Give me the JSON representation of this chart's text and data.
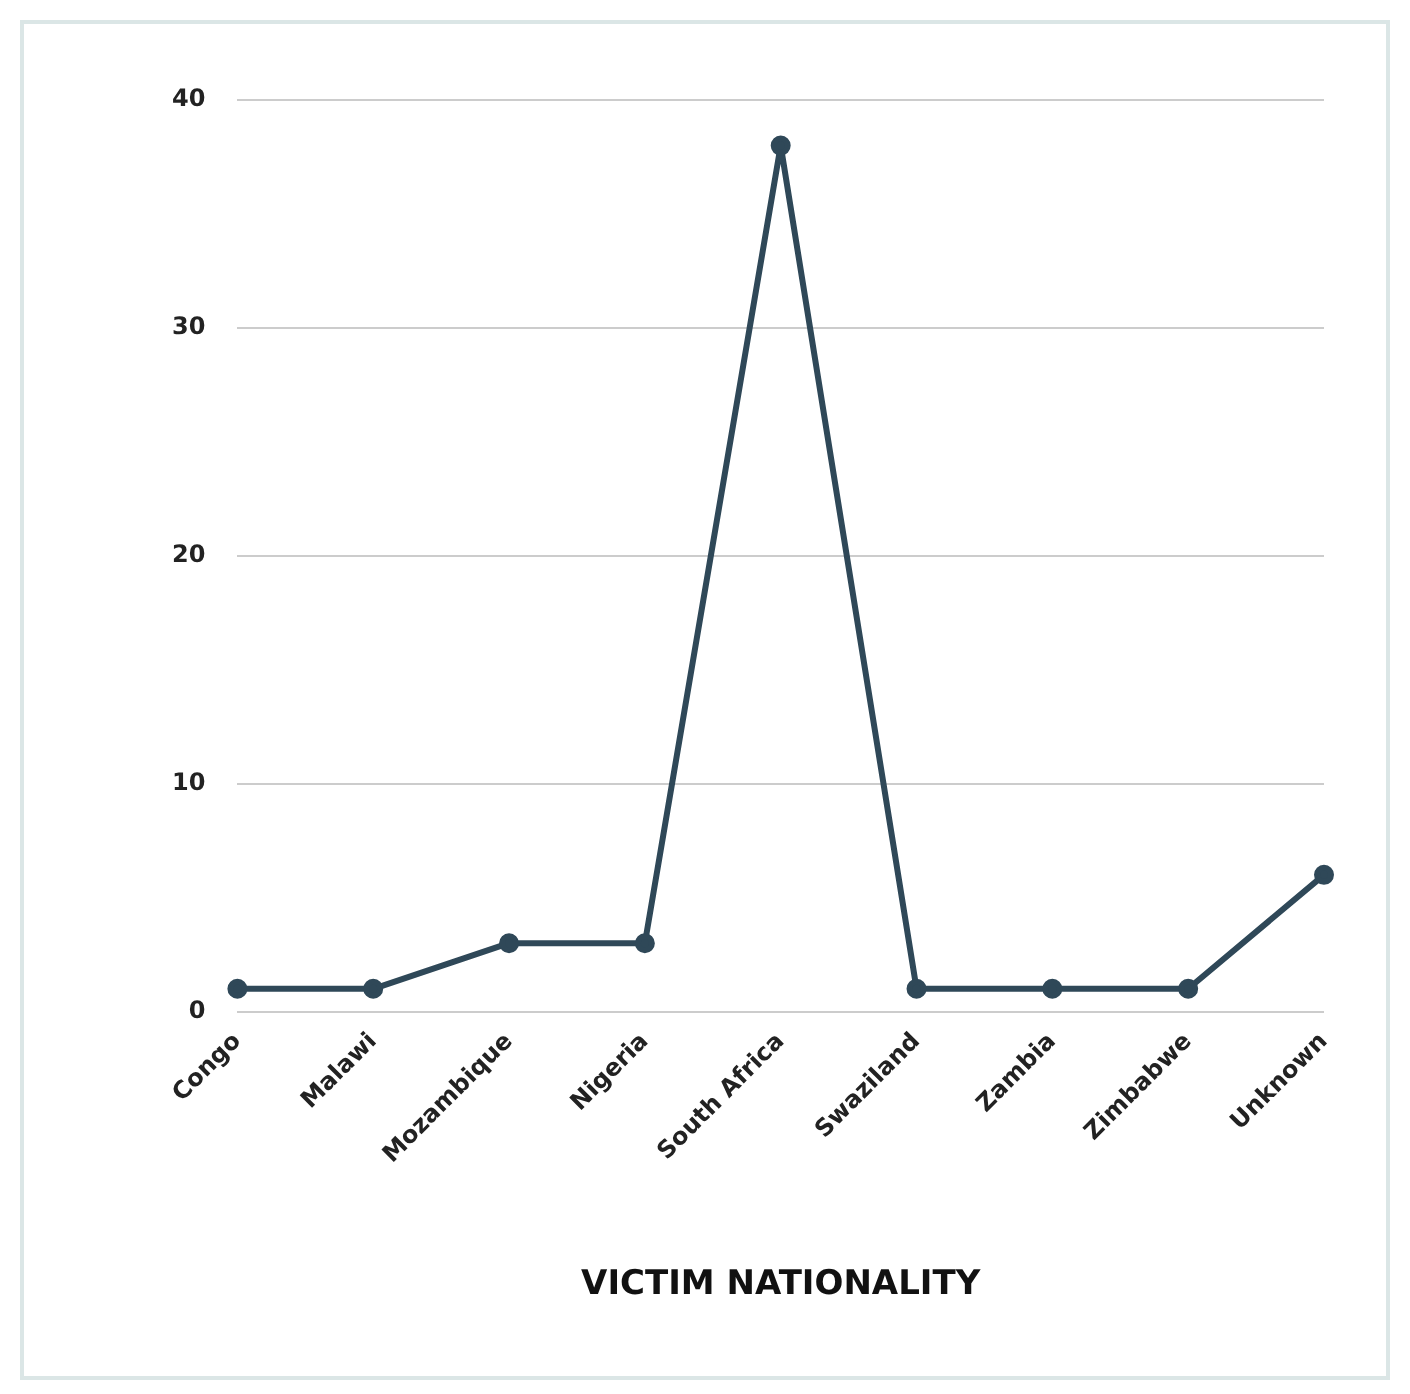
{
  "chart_data": {
    "type": "line",
    "xlabel": "VICTIM NATIONALITY",
    "categories": [
      "Congo",
      "Malawi",
      "Mozambique",
      "Nigeria",
      "South Africa",
      "Swaziland",
      "Zambia",
      "Zimbabwe",
      "Unknown"
    ],
    "series": [
      {
        "color": "#2f4858",
        "values": [
          1,
          1,
          3,
          3,
          38,
          1,
          1,
          1,
          6
        ]
      }
    ],
    "ylim": [
      0,
      40
    ],
    "yticks": [
      0,
      10,
      20,
      30,
      40
    ],
    "grid": "y",
    "legend": false,
    "marker": "circle",
    "line_style": "solid"
  }
}
